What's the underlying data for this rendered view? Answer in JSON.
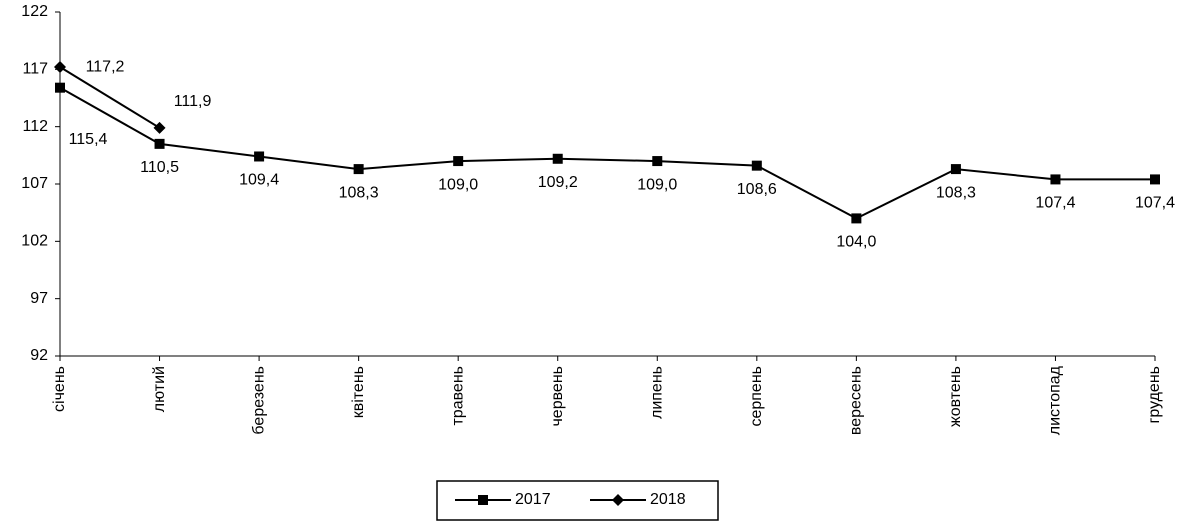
{
  "chart_data": {
    "type": "line",
    "categories": [
      "січень",
      "лютий",
      "березень",
      "квітень",
      "травень",
      "червень",
      "липень",
      "серпень",
      "вересень",
      "жовтень",
      "листопад",
      "грудень"
    ],
    "series": [
      {
        "name": "2017",
        "color": "#000000",
        "marker": "square",
        "values": [
          115.4,
          110.5,
          109.4,
          108.3,
          109.0,
          109.2,
          109.0,
          108.6,
          104.0,
          108.3,
          107.4,
          107.4
        ],
        "value_labels": [
          "115,4",
          "110,5",
          "109,4",
          "108,3",
          "109,0",
          "109,2",
          "109,0",
          "108,6",
          "104,0",
          "108,3",
          "107,4",
          "107,4"
        ]
      },
      {
        "name": "2018",
        "color": "#000000",
        "marker": "diamond",
        "values": [
          117.2,
          111.9,
          null,
          null,
          null,
          null,
          null,
          null,
          null,
          null,
          null,
          null
        ],
        "value_labels": [
          "117,2",
          "111,9",
          null,
          null,
          null,
          null,
          null,
          null,
          null,
          null,
          null,
          null
        ]
      }
    ],
    "ylim": [
      92,
      122
    ],
    "yticks": [
      92,
      97,
      102,
      107,
      112,
      117,
      122
    ],
    "grid": false,
    "legend": "bottom"
  }
}
